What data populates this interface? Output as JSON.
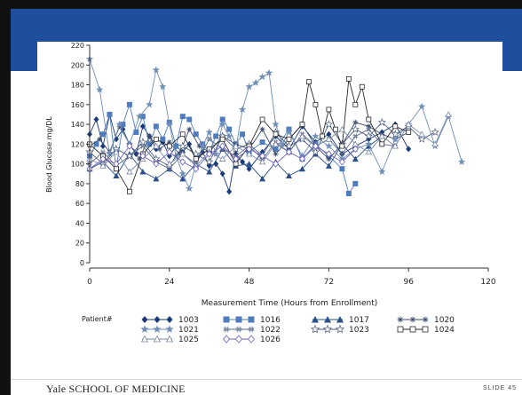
{
  "slide": {
    "brand": "Yale SCHOOL OF MEDICINE",
    "slide_number": "SLIDE 45",
    "banner_color": "#1f4e9c"
  },
  "chart_data": {
    "type": "line",
    "xlabel": "Measurement Time (Hours from Enrollment)",
    "ylabel": "Blood Glucose mg/DL",
    "xlim": [
      0,
      120
    ],
    "ylim": [
      0,
      220
    ],
    "xticks": [
      0,
      24,
      48,
      72,
      96,
      120
    ],
    "yticks": [
      0,
      20,
      40,
      60,
      80,
      100,
      120,
      140,
      160,
      180,
      200,
      220
    ],
    "legend_title": "Patient#",
    "legend_position": "bottom",
    "series": [
      {
        "name": "1003",
        "color": "#1a3a7a",
        "marker": "diamond",
        "x": [
          0,
          2,
          4,
          6,
          8,
          10,
          12,
          14,
          16,
          18,
          20,
          22,
          24,
          26,
          28,
          30,
          32,
          34,
          36,
          38,
          40,
          42,
          44,
          46,
          48,
          52,
          56,
          60,
          64,
          68,
          72,
          76,
          80,
          84,
          88,
          92,
          96
        ],
        "y": [
          130,
          145,
          118,
          150,
          125,
          135,
          120,
          110,
          138,
          128,
          115,
          122,
          108,
          118,
          112,
          120,
          105,
          112,
          98,
          100,
          90,
          72,
          110,
          102,
          95,
          112,
          128,
          115,
          138,
          122,
          130,
          110,
          118,
          125,
          132,
          140,
          115
        ]
      },
      {
        "name": "1016",
        "color": "#4f7cbf",
        "marker": "square",
        "x": [
          0,
          2,
          4,
          6,
          8,
          10,
          12,
          14,
          16,
          18,
          20,
          22,
          24,
          26,
          28,
          30,
          32,
          34,
          36,
          38,
          40,
          42,
          44,
          46,
          48,
          52,
          56,
          60,
          64,
          68,
          72,
          76,
          78,
          80
        ],
        "y": [
          108,
          120,
          130,
          150,
          95,
          140,
          160,
          132,
          148,
          120,
          138,
          125,
          142,
          118,
          148,
          145,
          130,
          120,
          112,
          128,
          145,
          135,
          120,
          130,
          112,
          122,
          115,
          135,
          105,
          120,
          108,
          95,
          70,
          80
        ]
      },
      {
        "name": "1017",
        "color": "#2a4f8a",
        "marker": "triangle",
        "x": [
          0,
          4,
          8,
          12,
          16,
          20,
          24,
          28,
          32,
          36,
          40,
          44,
          48,
          52,
          56,
          60,
          64,
          68,
          72,
          76,
          80,
          84,
          88
        ],
        "y": [
          95,
          102,
          88,
          110,
          92,
          85,
          95,
          85,
          100,
          92,
          115,
          98,
          100,
          85,
          102,
          88,
          95,
          110,
          98,
          120,
          105,
          118,
          128
        ]
      },
      {
        "name": "1020",
        "color": "#3a4a6a",
        "marker": "asterisk",
        "x": [
          0,
          3,
          6,
          9,
          12,
          15,
          18,
          21,
          24,
          27,
          30,
          33,
          36,
          40,
          44,
          48,
          52,
          56,
          60,
          64,
          68,
          72,
          76,
          80,
          84,
          88,
          92,
          96
        ],
        "y": [
          118,
          125,
          112,
          138,
          120,
          105,
          128,
          115,
          122,
          110,
          135,
          118,
          112,
          128,
          120,
          115,
          135,
          110,
          125,
          140,
          118,
          105,
          120,
          142,
          138,
          130,
          125,
          132
        ]
      },
      {
        "name": "1021",
        "color": "#6f8eb8",
        "marker": "star",
        "x": [
          0,
          3,
          6,
          9,
          12,
          15,
          18,
          20,
          22,
          24,
          26,
          28,
          30,
          32,
          34,
          36,
          38,
          40,
          42,
          44,
          46,
          48,
          50,
          52,
          54,
          56,
          58,
          60,
          64,
          68,
          72,
          76,
          80,
          84,
          88,
          92,
          96,
          100,
          104,
          108,
          112
        ],
        "y": [
          206,
          175,
          110,
          140,
          120,
          148,
          160,
          195,
          178,
          140,
          108,
          90,
          75,
          100,
          118,
          132,
          110,
          140,
          128,
          115,
          155,
          178,
          182,
          188,
          192,
          140,
          120,
          132,
          108,
          128,
          118,
          105,
          115,
          120,
          92,
          125,
          140,
          158,
          118,
          148,
          102
        ]
      },
      {
        "name": "1022",
        "color": "#5a6a8a",
        "marker": "hash",
        "x": [
          0,
          4,
          8,
          12,
          16,
          20,
          24,
          28,
          32,
          36,
          40,
          44,
          48,
          52,
          56,
          60,
          64,
          68,
          72,
          76,
          80,
          84,
          88,
          92
        ],
        "y": [
          100,
          112,
          98,
          108,
          118,
          102,
          95,
          110,
          100,
          125,
          115,
          108,
          118,
          105,
          122,
          112,
          130,
          118,
          125,
          110,
          128,
          135,
          120,
          118
        ]
      },
      {
        "name": "1023",
        "color": "#4a5a7a",
        "marker": "star-open",
        "x": [
          0,
          4,
          8,
          12,
          16,
          20,
          24,
          28,
          32,
          36,
          40,
          44,
          48,
          52,
          56,
          60,
          64,
          68,
          72,
          76,
          80,
          84,
          88,
          92,
          96,
          100,
          104
        ],
        "y": [
          112,
          100,
          115,
          108,
          122,
          105,
          98,
          118,
          110,
          102,
          128,
          115,
          120,
          108,
          132,
          118,
          125,
          112,
          140,
          120,
          135,
          128,
          142,
          130,
          138,
          125,
          132
        ]
      },
      {
        "name": "1024",
        "color": "#2a2a2a",
        "marker": "square-open",
        "x": [
          0,
          4,
          8,
          12,
          16,
          20,
          24,
          28,
          32,
          36,
          40,
          44,
          48,
          52,
          56,
          60,
          64,
          66,
          68,
          70,
          72,
          74,
          76,
          78,
          80,
          82,
          84,
          88,
          92,
          96
        ],
        "y": [
          120,
          108,
          95,
          72,
          110,
          125,
          118,
          130,
          105,
          115,
          125,
          100,
          118,
          145,
          130,
          125,
          140,
          183,
          160,
          128,
          155,
          135,
          118,
          186,
          160,
          178,
          145,
          120,
          138,
          132
        ]
      },
      {
        "name": "1025",
        "color": "#7a8aa8",
        "marker": "triangle-open",
        "x": [
          0,
          4,
          8,
          12,
          16,
          20,
          24,
          28,
          32,
          36,
          40,
          44,
          48,
          52,
          56,
          60,
          64,
          68,
          72,
          76,
          80,
          84,
          88,
          92,
          96,
          100,
          104,
          108
        ],
        "y": [
          105,
          98,
          112,
          92,
          105,
          118,
          100,
          110,
          98,
          112,
          105,
          118,
          110,
          102,
          120,
          112,
          128,
          118,
          125,
          135,
          120,
          112,
          128,
          118,
          140,
          130,
          120,
          150
        ]
      },
      {
        "name": "1026",
        "color": "#6b5fc0",
        "marker": "diamond-open",
        "x": [
          0,
          4,
          8,
          12,
          16,
          20,
          24,
          28,
          32,
          36,
          40,
          44,
          48,
          52,
          56,
          60,
          64,
          68,
          72,
          76,
          80
        ],
        "y": [
          95,
          105,
          100,
          118,
          108,
          100,
          112,
          102,
          95,
          110,
          118,
          105,
          115,
          108,
          100,
          112,
          105,
          118,
          110,
          102,
          115
        ]
      }
    ]
  }
}
